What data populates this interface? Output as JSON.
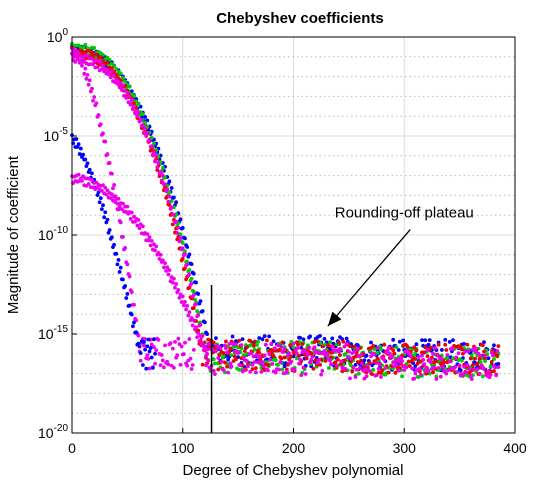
{
  "chart_data": {
    "type": "scatter",
    "title": "Chebyshev coefficients",
    "xlabel": "Degree of Chebyshev polynomial",
    "ylabel": "Magnitude of coefficient",
    "xlim": [
      0,
      400
    ],
    "ylim": [
      1e-20,
      1
    ],
    "yscale": "log",
    "grid": true,
    "legend": "none",
    "x_ticks": [
      {
        "value": 0,
        "label": "0"
      },
      {
        "value": 100,
        "label": "100"
      },
      {
        "value": 200,
        "label": "200"
      },
      {
        "value": 300,
        "label": "300"
      },
      {
        "value": 400,
        "label": "400"
      }
    ],
    "y_ticks": [
      {
        "value": 1,
        "base": "10",
        "exp": "0"
      },
      {
        "value": 1e-05,
        "base": "10",
        "exp": "-5"
      },
      {
        "value": 1e-10,
        "base": "10",
        "exp": "-10"
      },
      {
        "value": 1e-15,
        "base": "10",
        "exp": "-15"
      },
      {
        "value": 1e-20,
        "base": "10",
        "exp": "-20"
      }
    ],
    "series": [
      {
        "color": "#0000ff",
        "max_degree": 385,
        "start_log10": -0.5,
        "drop_degree": 125,
        "plateau_log10": -15.8,
        "decay_power": 2.3
      },
      {
        "color": "#00cc00",
        "max_degree": 385,
        "start_log10": -0.4,
        "drop_degree": 122,
        "plateau_log10": -16.1,
        "decay_power": 2.3
      },
      {
        "color": "#ee0000",
        "max_degree": 385,
        "start_log10": -0.6,
        "drop_degree": 118,
        "plateau_log10": -16.0,
        "decay_power": 2.3
      },
      {
        "color": "#ee00ee",
        "max_degree": 385,
        "start_log10": -0.9,
        "drop_degree": 122,
        "plateau_log10": -16.2,
        "decay_power": 2.3
      },
      {
        "color": "#ee00ee",
        "max_degree": 110,
        "start_log10": -0.5,
        "drop_degree": 62,
        "plateau_log10": -15.9,
        "decay_power": 1.6
      },
      {
        "color": "#0000ff",
        "max_degree": 75,
        "start_log10": -5.0,
        "drop_degree": 62,
        "plateau_log10": -15.9,
        "decay_power": 1.4
      },
      {
        "color": "#ee00ee",
        "max_degree": 125,
        "start_log10": -7.0,
        "drop_degree": 122,
        "plateau_log10": -16.0,
        "decay_power": 1.9
      }
    ],
    "cutoff_line": {
      "x": 126,
      "y_top": 3e-13,
      "y_bottom": 1e-20
    },
    "annotation": {
      "text": "Rounding-off plateau",
      "arrow_to": [
        231,
        2.5e-15
      ],
      "text_at": [
        300,
        3e-10
      ]
    }
  }
}
